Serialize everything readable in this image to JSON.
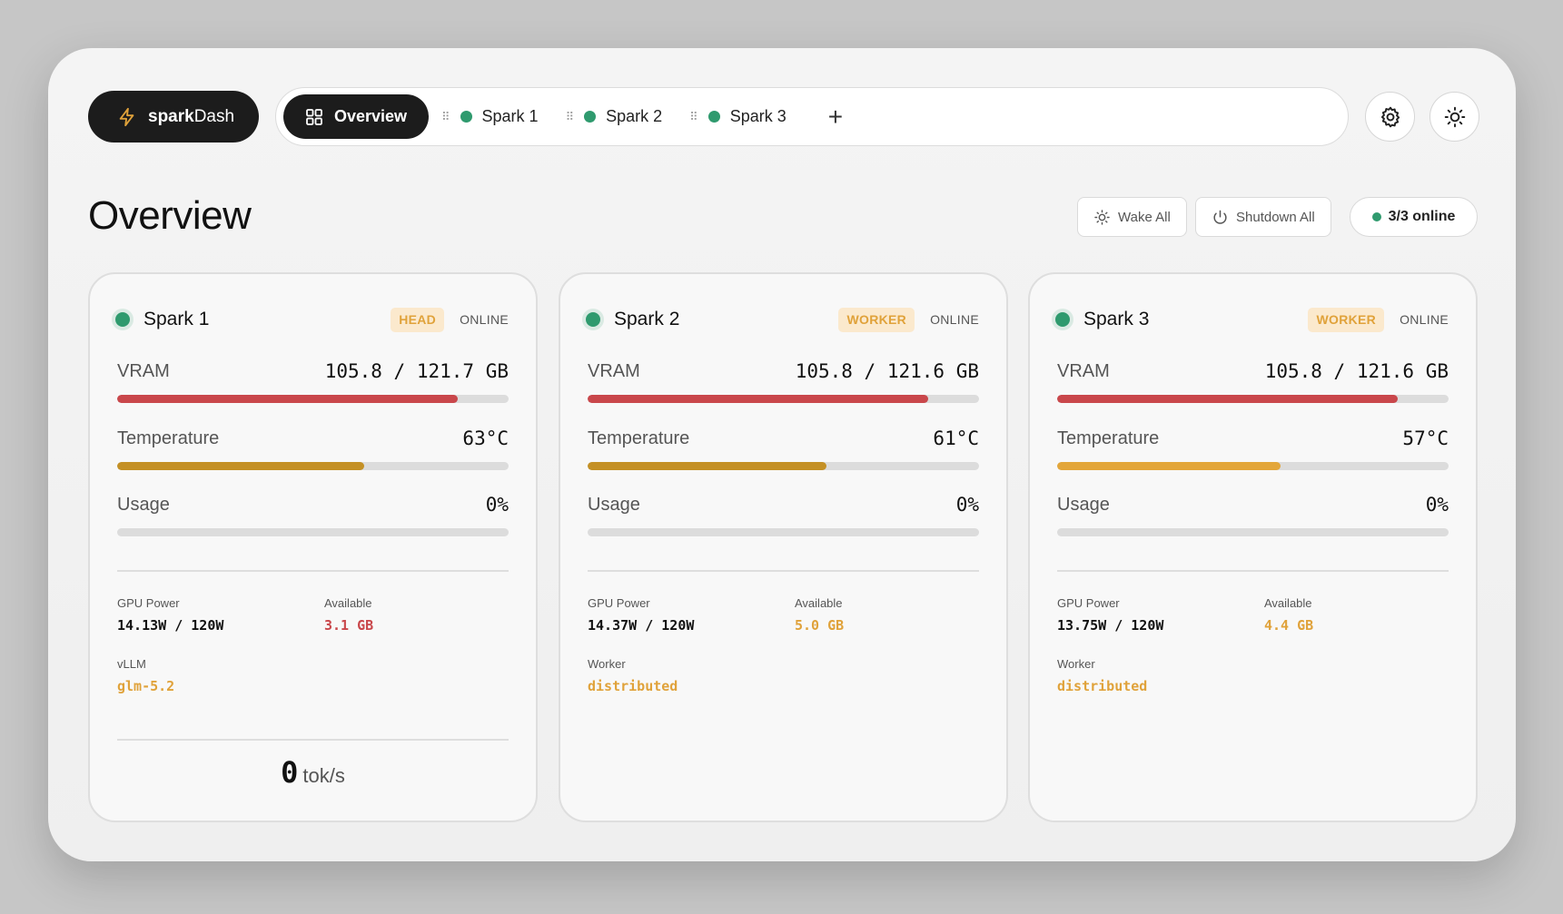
{
  "app": {
    "brand_prefix": "spark",
    "brand_suffix": "Dash"
  },
  "tabs": {
    "overview": "Overview",
    "items": [
      {
        "label": "Spark 1",
        "status_color": "#2f9a6e"
      },
      {
        "label": "Spark 2",
        "status_color": "#2f9a6e"
      },
      {
        "label": "Spark 3",
        "status_color": "#2f9a6e"
      }
    ],
    "add_symbol": "+"
  },
  "header": {
    "title": "Overview",
    "wake_all_label": "Wake All",
    "shutdown_all_label": "Shutdown All",
    "online_label": "3/3 online"
  },
  "cards": [
    {
      "name": "Spark 1",
      "role": "HEAD",
      "status": "ONLINE",
      "vram_label": "VRAM",
      "vram_value": "105.8 / 121.7 GB",
      "vram_fraction": 0.869,
      "vram_color": "#c9474b",
      "temp_label": "Temperature",
      "temp_value": "63°C",
      "temp_fraction": 0.63,
      "temp_color": "#c49025",
      "usage_label": "Usage",
      "usage_value": "0%",
      "usage_fraction": 0,
      "power_label": "GPU Power",
      "power_value": "14.13W / 120W",
      "avail_label": "Available",
      "avail_value": "3.1 GB",
      "avail_color": "#c9474b",
      "extra_label": "vLLM",
      "extra_value": "glm-5.2",
      "extra_color": "#e0a23a",
      "tps_value": "0",
      "tps_unit": "tok/s"
    },
    {
      "name": "Spark 2",
      "role": "WORKER",
      "status": "ONLINE",
      "vram_label": "VRAM",
      "vram_value": "105.8 / 121.6 GB",
      "vram_fraction": 0.87,
      "vram_color": "#c9474b",
      "temp_label": "Temperature",
      "temp_value": "61°C",
      "temp_fraction": 0.61,
      "temp_color": "#c49025",
      "usage_label": "Usage",
      "usage_value": "0%",
      "usage_fraction": 0,
      "power_label": "GPU Power",
      "power_value": "14.37W / 120W",
      "avail_label": "Available",
      "avail_value": "5.0 GB",
      "avail_color": "#e0a23a",
      "extra_label": "Worker",
      "extra_value": "distributed",
      "extra_color": "#e0a23a"
    },
    {
      "name": "Spark 3",
      "role": "WORKER",
      "status": "ONLINE",
      "vram_label": "VRAM",
      "vram_value": "105.8 / 121.6 GB",
      "vram_fraction": 0.87,
      "vram_color": "#c9474b",
      "temp_label": "Temperature",
      "temp_value": "57°C",
      "temp_fraction": 0.57,
      "temp_color": "#e3a63a",
      "usage_label": "Usage",
      "usage_value": "0%",
      "usage_fraction": 0,
      "power_label": "GPU Power",
      "power_value": "13.75W / 120W",
      "avail_label": "Available",
      "avail_value": "4.4 GB",
      "avail_color": "#e0a23a",
      "extra_label": "Worker",
      "extra_value": "distributed",
      "extra_color": "#e0a23a"
    }
  ]
}
